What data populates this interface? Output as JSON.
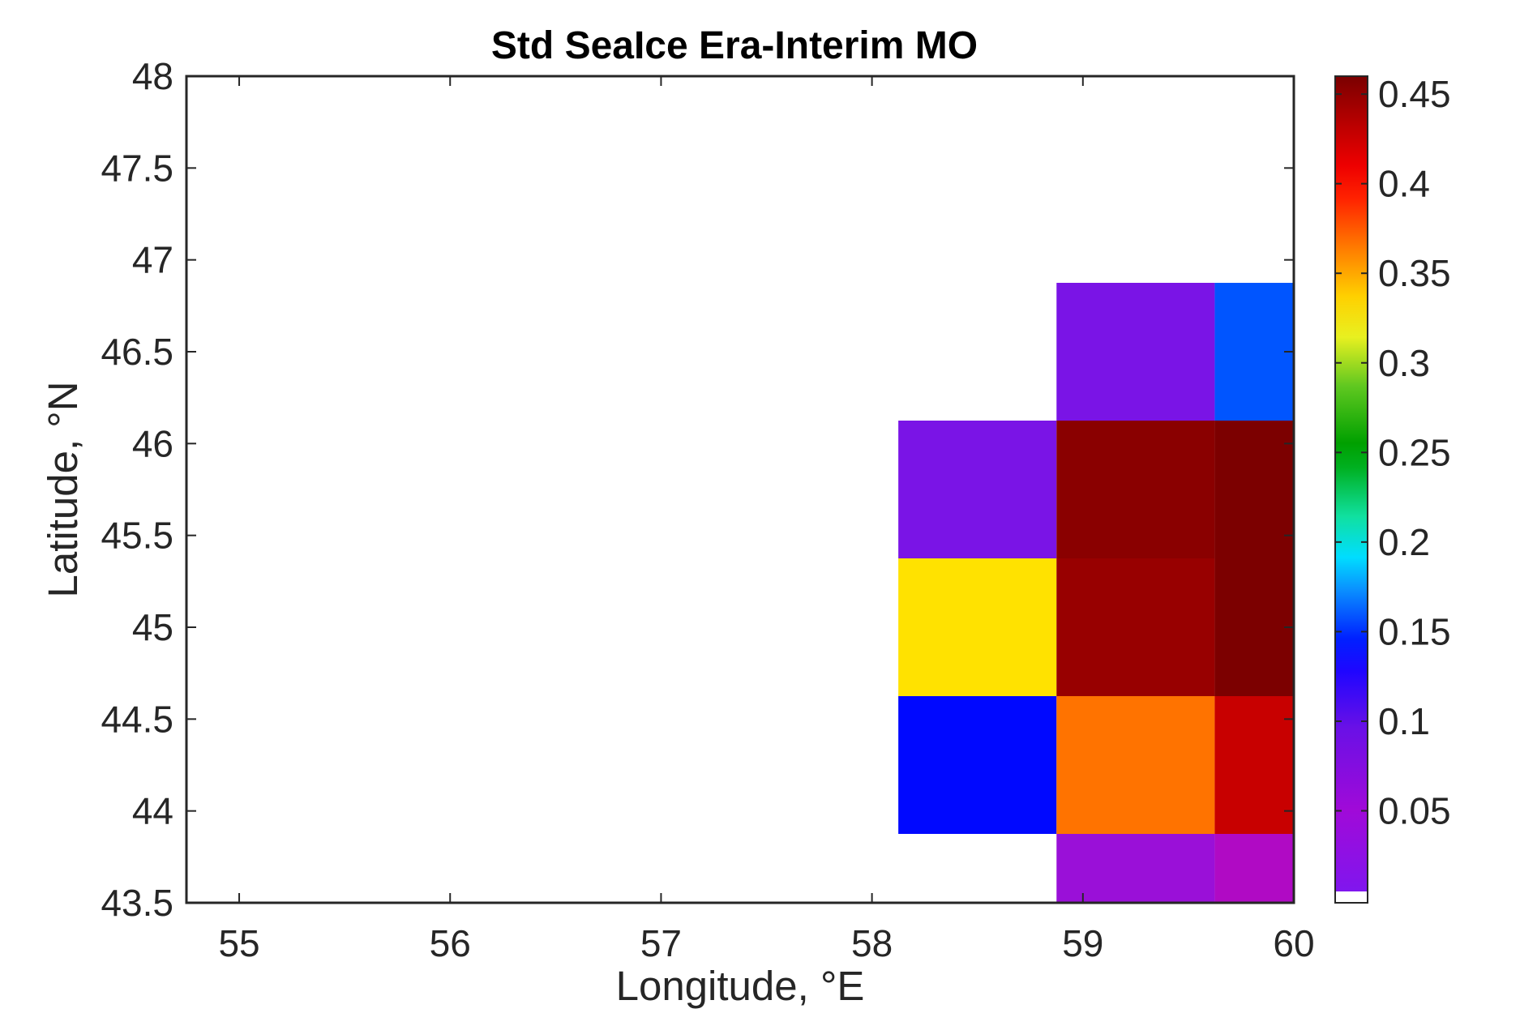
{
  "chart_data": {
    "type": "heatmap",
    "title": "Std SeaIce Era-Interim MO",
    "xlabel": "Longitude, °E",
    "ylabel": "Latitude, °N",
    "xlim": [
      54.75,
      60
    ],
    "ylim": [
      43.5,
      48
    ],
    "x_ticks": [
      55,
      56,
      57,
      58,
      59,
      60
    ],
    "x_tick_labels": [
      "55",
      "56",
      "57",
      "58",
      "59",
      "60"
    ],
    "y_ticks": [
      43.5,
      44,
      44.5,
      45,
      45.5,
      46,
      46.5,
      47,
      47.5,
      48
    ],
    "y_tick_labels": [
      "43.5",
      "44",
      "44.5",
      "45",
      "45.5",
      "46",
      "46.5",
      "47",
      "47.5",
      "48"
    ],
    "grid": false,
    "cell_size": {
      "lon": 0.75,
      "lat": 0.75
    },
    "cells": [
      {
        "lon": 58.5,
        "lat": 44.25,
        "value": 0.13,
        "color": "#0008ff"
      },
      {
        "lon": 58.5,
        "lat": 45.0,
        "value": 0.33,
        "color": "#ffe200"
      },
      {
        "lon": 58.5,
        "lat": 45.75,
        "value": 0.08,
        "color": "#7a14e6"
      },
      {
        "lon": 59.25,
        "lat": 43.5,
        "value": 0.06,
        "color": "#9a10d8"
      },
      {
        "lon": 59.25,
        "lat": 44.25,
        "value": 0.36,
        "color": "#ff7300"
      },
      {
        "lon": 59.25,
        "lat": 45.0,
        "value": 0.44,
        "color": "#980000"
      },
      {
        "lon": 59.25,
        "lat": 45.75,
        "value": 0.45,
        "color": "#8a0000"
      },
      {
        "lon": 59.25,
        "lat": 46.5,
        "value": 0.08,
        "color": "#7a14e6"
      },
      {
        "lon": 60.0,
        "lat": 43.5,
        "value": 0.05,
        "color": "#b00ac4"
      },
      {
        "lon": 60.0,
        "lat": 44.25,
        "value": 0.42,
        "color": "#c80000"
      },
      {
        "lon": 60.0,
        "lat": 45.0,
        "value": 0.46,
        "color": "#7c0000"
      },
      {
        "lon": 60.0,
        "lat": 45.75,
        "value": 0.46,
        "color": "#7c0000"
      },
      {
        "lon": 60.0,
        "lat": 46.5,
        "value": 0.16,
        "color": "#0055ff"
      }
    ],
    "colorbar": {
      "range": [
        0.005,
        0.46
      ],
      "ticks": [
        0.05,
        0.1,
        0.15,
        0.2,
        0.25,
        0.3,
        0.35,
        0.4,
        0.45
      ],
      "tick_labels": [
        "0.05",
        "0.1",
        "0.15",
        "0.2",
        "0.25",
        "0.3",
        "0.35",
        "0.4",
        "0.45"
      ],
      "colormap": [
        [
          0.0,
          "#8016ee"
        ],
        [
          0.1,
          "#a00ad8"
        ],
        [
          0.2,
          "#6a10e6"
        ],
        [
          0.27,
          "#1f06ff"
        ],
        [
          0.31,
          "#0020ff"
        ],
        [
          0.37,
          "#0a90ff"
        ],
        [
          0.41,
          "#00ddff"
        ],
        [
          0.46,
          "#10e0a0"
        ],
        [
          0.52,
          "#00b020"
        ],
        [
          0.55,
          "#00a000"
        ],
        [
          0.62,
          "#60c820"
        ],
        [
          0.68,
          "#e8f020"
        ],
        [
          0.73,
          "#ffd000"
        ],
        [
          0.79,
          "#ff7a00"
        ],
        [
          0.85,
          "#ff2200"
        ],
        [
          0.89,
          "#ee0000"
        ],
        [
          0.95,
          "#b00000"
        ],
        [
          1.0,
          "#7a0000"
        ]
      ]
    }
  }
}
